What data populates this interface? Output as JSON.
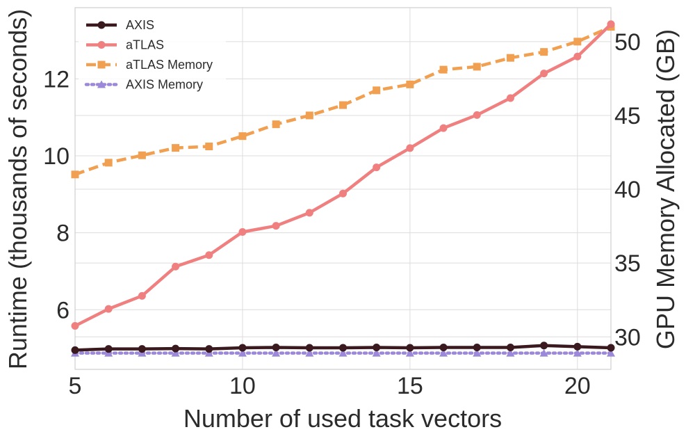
{
  "chart_data": {
    "type": "line",
    "xlabel": "Number of used task vectors",
    "ylabel": "Runtime (thousands of seconds)",
    "y2label": "GPU Memory Allocated (GB)",
    "x": [
      5,
      6,
      7,
      8,
      9,
      10,
      11,
      12,
      13,
      14,
      15,
      16,
      17,
      18,
      19,
      20,
      21
    ],
    "xlim": [
      5,
      21
    ],
    "ylim": [
      4.45,
      13.85
    ],
    "y2lim": [
      27.8,
      52.3
    ],
    "xticks": [
      5,
      10,
      15,
      20
    ],
    "yticks": [
      6,
      8,
      10,
      12
    ],
    "y2ticks": [
      30,
      35,
      40,
      45,
      50
    ],
    "grid": true,
    "legend_position": "top-left",
    "series": [
      {
        "name": "AXIS",
        "axis": "left",
        "color": "#3b1a1f",
        "marker": "circle",
        "dash": "solid",
        "values": [
          4.95,
          4.98,
          4.98,
          4.99,
          4.98,
          5.01,
          5.02,
          5.01,
          5.01,
          5.02,
          5.01,
          5.02,
          5.02,
          5.02,
          5.07,
          5.04,
          5.01
        ]
      },
      {
        "name": "aTLAS",
        "axis": "left",
        "color": "#f08080",
        "marker": "circle",
        "dash": "solid",
        "values": [
          5.58,
          6.02,
          6.36,
          7.12,
          7.42,
          8.02,
          8.18,
          8.52,
          9.02,
          9.7,
          10.2,
          10.72,
          11.06,
          11.5,
          12.14,
          12.58,
          13.42
        ]
      },
      {
        "name": "aTLAS Memory",
        "axis": "right",
        "color": "#f0a050",
        "marker": "square",
        "dash": "dashed",
        "values": [
          41.0,
          41.8,
          42.3,
          42.8,
          42.9,
          43.6,
          44.4,
          45.0,
          45.7,
          46.7,
          47.1,
          48.1,
          48.3,
          48.9,
          49.3,
          50.0,
          51.0
        ]
      },
      {
        "name": "AXIS Memory",
        "axis": "right",
        "color": "#9b88d8",
        "marker": "triangle",
        "dash": "dotted",
        "values": [
          28.9,
          28.9,
          28.9,
          28.9,
          28.9,
          28.9,
          28.9,
          28.9,
          28.9,
          28.9,
          28.9,
          28.9,
          28.9,
          28.9,
          28.9,
          28.9,
          28.9
        ]
      }
    ]
  }
}
